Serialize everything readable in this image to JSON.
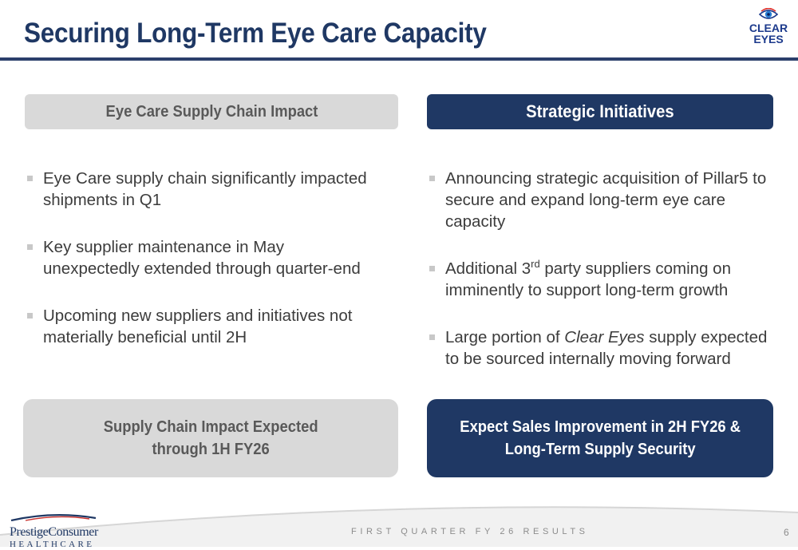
{
  "page": {
    "title": "Securing Long-Term Eye Care Capacity",
    "brand_logo_text": [
      "CLEAR",
      "EYES"
    ],
    "brand_icon": "eye-icon"
  },
  "colors": {
    "navy": "#1f3864",
    "light_gray": "#d9d9d9",
    "gray_text": "#595959",
    "body_text": "#3c3c3c"
  },
  "left_column": {
    "header": "Eye Care Supply Chain Impact",
    "bullets": [
      "Eye Care supply chain significantly impacted shipments in Q1",
      "Key supplier maintenance in May unexpectedly extended through quarter-end",
      "Upcoming new suppliers and initiatives not materially beneficial until 2H"
    ],
    "callout_lines": [
      "Supply Chain Impact Expected",
      "through 1H FY26"
    ]
  },
  "right_column": {
    "header": "Strategic Initiatives",
    "bullets": [
      {
        "text": "Announcing strategic acquisition of Pillar5 to secure and expand long-term eye care capacity"
      },
      {
        "before": "Additional 3",
        "sup": "rd",
        "after": " party suppliers coming on imminently to support long-term growth"
      },
      {
        "before": "Large portion of ",
        "italic": "Clear Eyes",
        "after": " supply expected to be sourced internally moving forward"
      }
    ],
    "callout_lines": [
      "Expect Sales Improvement in 2H FY26 &",
      "Long-Term Supply Security"
    ]
  },
  "footer": {
    "logo_name": "PrestigeConsumer",
    "logo_sub": "HEALTHCARE",
    "text": "FIRST QUARTER FY 26 RESULTS",
    "page_number": "6"
  }
}
